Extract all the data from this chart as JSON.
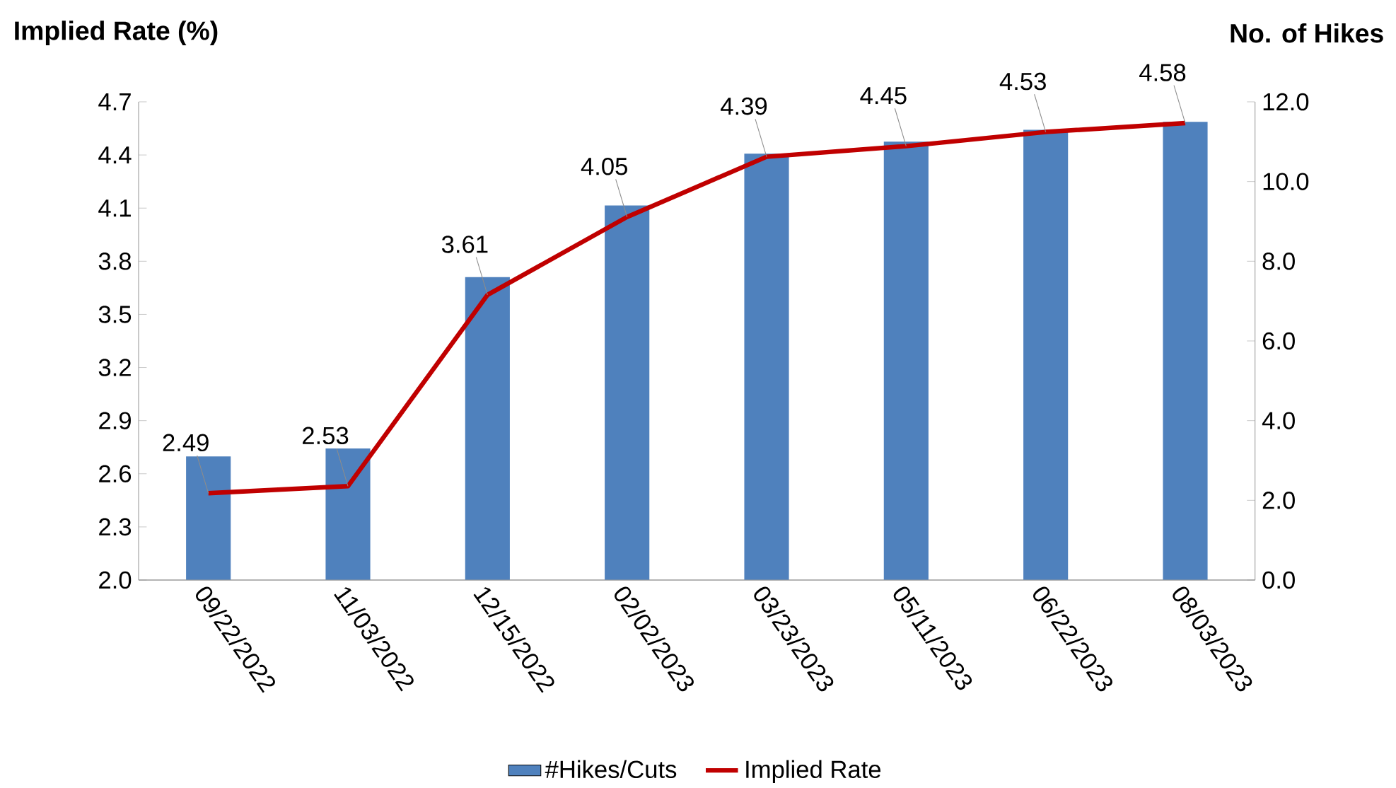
{
  "chart_data": {
    "type": "bar",
    "categories": [
      "09/22/2022",
      "11/03/2022",
      "12/15/2022",
      "02/02/2023",
      "03/23/2023",
      "05/11/2023",
      "06/22/2023",
      "08/03/2023"
    ],
    "ylabel": "Implied Rate (%)",
    "y2label": "No. of Hikes",
    "legend": "bottom",
    "ylim": [
      2.0,
      4.7
    ],
    "yticks": [
      {
        "value": 2.0,
        "label": "2.0"
      },
      {
        "value": 2.3,
        "label": "2.3"
      },
      {
        "value": 2.6,
        "label": "2.6"
      },
      {
        "value": 2.9,
        "label": "2.9"
      },
      {
        "value": 3.2,
        "label": "3.2"
      },
      {
        "value": 3.5,
        "label": "3.5"
      },
      {
        "value": 3.8,
        "label": "3.8"
      },
      {
        "value": 4.1,
        "label": "4.1"
      },
      {
        "value": 4.4,
        "label": "4.4"
      },
      {
        "value": 4.7,
        "label": "4.7"
      }
    ],
    "y2lim": [
      0,
      12
    ],
    "y2ticks": [
      {
        "value": 0,
        "label": "0.0"
      },
      {
        "value": 2,
        "label": "2.0"
      },
      {
        "value": 4,
        "label": "4.0"
      },
      {
        "value": 6,
        "label": "6.0"
      },
      {
        "value": 8,
        "label": "8.0"
      },
      {
        "value": 10,
        "label": "10.0"
      },
      {
        "value": 12,
        "label": "12.0"
      }
    ],
    "series": [
      {
        "name": "#Hikes/Cuts",
        "axis": "y2",
        "color": "#4f81bd",
        "values": [
          3.1,
          3.3,
          7.6,
          9.4,
          10.7,
          11.0,
          11.3,
          11.5
        ]
      },
      {
        "name": "Implied Rate",
        "type": "line",
        "axis": "y",
        "color": "#c00000",
        "values": [
          2.49,
          2.53,
          3.61,
          4.05,
          4.39,
          4.45,
          4.53,
          4.58
        ],
        "value_labels": [
          "2.49",
          "2.53",
          "3.61",
          "4.05",
          "4.39",
          "4.45",
          "4.53",
          "4.58"
        ]
      }
    ]
  }
}
